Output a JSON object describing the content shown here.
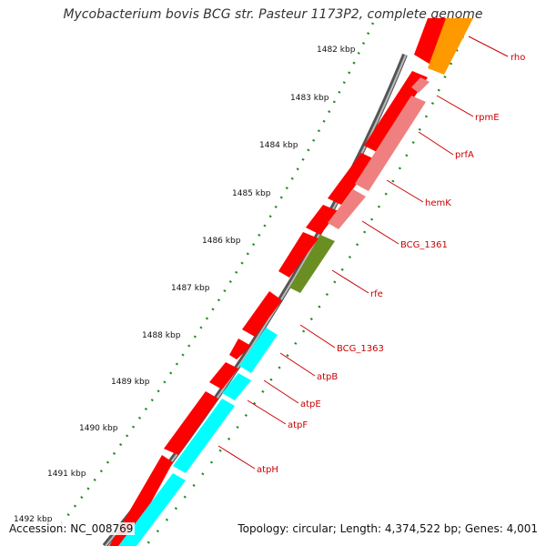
{
  "title": "Mycobacterium bovis BCG str. Pasteur 1173P2, complete genome",
  "footer": {
    "accession": "Accession: NC_008769",
    "topology": "Topology: circular; Length: 4,374,522 bp; Genes: 4,001"
  },
  "scale": {
    "unit": "kbp",
    "tick_labels": [
      "1482 kbp",
      "1483 kbp",
      "1484 kbp",
      "1485 kbp",
      "1486 kbp",
      "1487 kbp",
      "1488 kbp",
      "1489 kbp",
      "1490 kbp",
      "1491 kbp",
      "1492 kbp"
    ]
  },
  "gene_labels": [
    "rho",
    "rpmE",
    "prfA",
    "hemK",
    "BCG_1361",
    "rfe",
    "BCG_1363",
    "atpB",
    "atpE",
    "atpF",
    "atpH"
  ],
  "colors": {
    "backbone": "#808080",
    "cds_forward": "#ff0000",
    "orange_gene": "#ff9900",
    "pink_gene": "#f08080",
    "olive_gene": "#6b8e23",
    "cyan_gene": "#00ffff",
    "tick_green": "#228b22",
    "label_red": "#cc0000"
  }
}
